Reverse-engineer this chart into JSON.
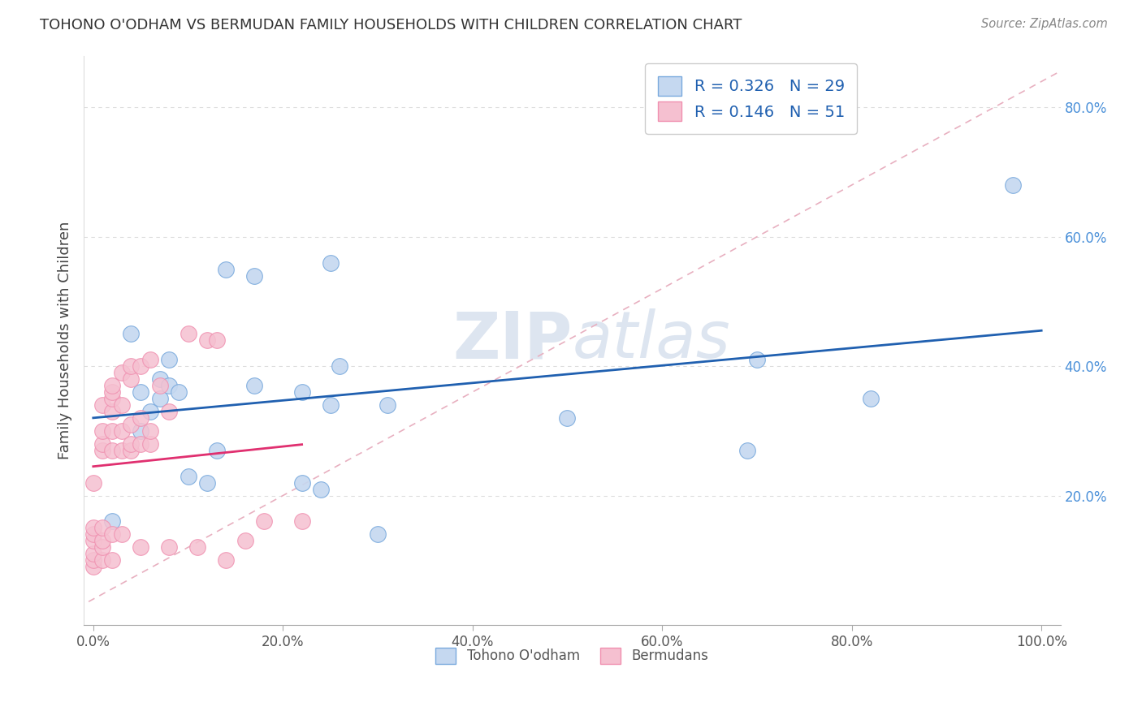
{
  "title": "TOHONO O'ODHAM VS BERMUDAN FAMILY HOUSEHOLDS WITH CHILDREN CORRELATION CHART",
  "source": "Source: ZipAtlas.com",
  "ylabel": "Family Households with Children",
  "xlim": [
    -0.01,
    1.02
  ],
  "ylim": [
    0.0,
    0.88
  ],
  "xticks": [
    0.0,
    0.2,
    0.4,
    0.6,
    0.8,
    1.0
  ],
  "xtick_labels": [
    "0.0%",
    "20.0%",
    "40.0%",
    "60.0%",
    "80.0%",
    "100.0%"
  ],
  "yticks": [
    0.2,
    0.4,
    0.6,
    0.8
  ],
  "ytick_labels": [
    "20.0%",
    "40.0%",
    "60.0%",
    "80.0%"
  ],
  "blue_R": 0.326,
  "blue_N": 29,
  "pink_R": 0.146,
  "pink_N": 51,
  "blue_color": "#c5d8f0",
  "pink_color": "#f5c0d0",
  "blue_edge_color": "#7aaadd",
  "pink_edge_color": "#f090b0",
  "blue_line_color": "#2060b0",
  "pink_line_color": "#e03070",
  "dashed_line_color": "#e8b0c0",
  "ytick_color": "#4a90d9",
  "xtick_color": "#555555",
  "watermark_color": "#dde5f0",
  "background_color": "#ffffff",
  "grid_color": "#dddddd",
  "blue_scatter_x": [
    0.02,
    0.04,
    0.05,
    0.05,
    0.06,
    0.07,
    0.07,
    0.08,
    0.08,
    0.09,
    0.1,
    0.12,
    0.13,
    0.14,
    0.17,
    0.17,
    0.22,
    0.22,
    0.24,
    0.25,
    0.25,
    0.26,
    0.3,
    0.31,
    0.5,
    0.69,
    0.7,
    0.82,
    0.97
  ],
  "blue_scatter_y": [
    0.16,
    0.45,
    0.3,
    0.36,
    0.33,
    0.35,
    0.38,
    0.37,
    0.41,
    0.36,
    0.23,
    0.22,
    0.27,
    0.55,
    0.54,
    0.37,
    0.22,
    0.36,
    0.21,
    0.34,
    0.56,
    0.4,
    0.14,
    0.34,
    0.32,
    0.27,
    0.41,
    0.35,
    0.68
  ],
  "pink_scatter_x": [
    0.0,
    0.0,
    0.0,
    0.0,
    0.0,
    0.0,
    0.0,
    0.01,
    0.01,
    0.01,
    0.01,
    0.01,
    0.01,
    0.01,
    0.01,
    0.02,
    0.02,
    0.02,
    0.02,
    0.02,
    0.02,
    0.02,
    0.02,
    0.03,
    0.03,
    0.03,
    0.03,
    0.03,
    0.04,
    0.04,
    0.04,
    0.04,
    0.04,
    0.05,
    0.05,
    0.05,
    0.05,
    0.06,
    0.06,
    0.06,
    0.07,
    0.08,
    0.08,
    0.1,
    0.11,
    0.12,
    0.13,
    0.14,
    0.16,
    0.18,
    0.22
  ],
  "pink_scatter_y": [
    0.09,
    0.1,
    0.11,
    0.13,
    0.14,
    0.15,
    0.22,
    0.1,
    0.12,
    0.13,
    0.15,
    0.27,
    0.28,
    0.3,
    0.34,
    0.1,
    0.14,
    0.27,
    0.3,
    0.33,
    0.35,
    0.36,
    0.37,
    0.14,
    0.27,
    0.3,
    0.34,
    0.39,
    0.27,
    0.28,
    0.31,
    0.38,
    0.4,
    0.12,
    0.28,
    0.32,
    0.4,
    0.28,
    0.3,
    0.41,
    0.37,
    0.33,
    0.12,
    0.45,
    0.12,
    0.44,
    0.44,
    0.1,
    0.13,
    0.16,
    0.16
  ]
}
